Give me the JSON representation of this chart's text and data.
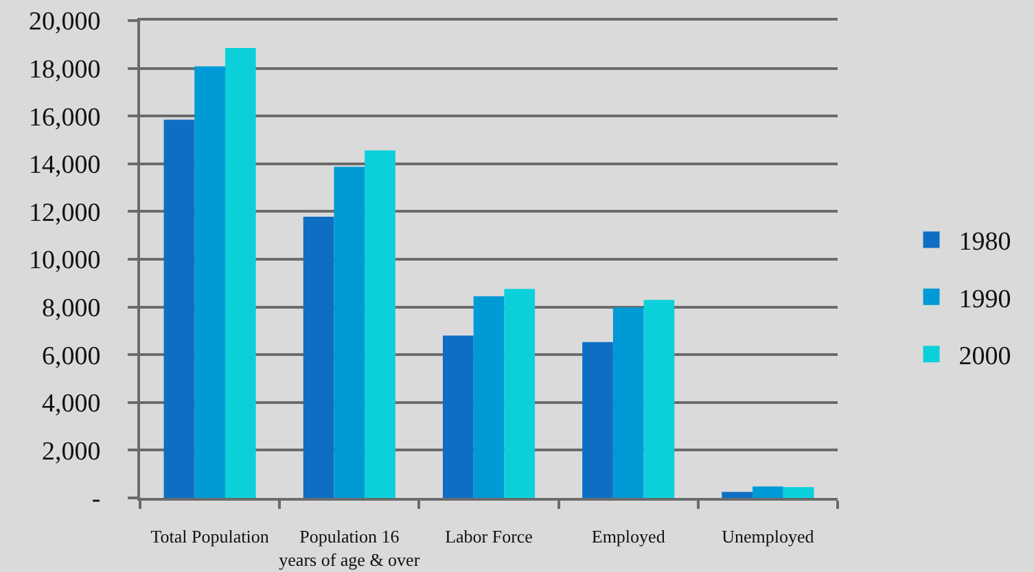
{
  "chart_data": {
    "type": "bar",
    "categories": [
      "Total Population",
      "Population 16 years of age & over",
      "Labor Force",
      "Employed",
      "Unemployed"
    ],
    "series": [
      {
        "name": "1980",
        "color": "#0e6ec4",
        "values": [
          15850,
          11780,
          6800,
          6530,
          250
        ]
      },
      {
        "name": "1990",
        "color": "#009ad6",
        "values": [
          18080,
          13870,
          8450,
          7980,
          480
        ]
      },
      {
        "name": "2000",
        "color": "#0bd0d9",
        "values": [
          18850,
          14560,
          8760,
          8300,
          450
        ]
      }
    ],
    "ylim": [
      0,
      20000
    ],
    "yticks": [
      {
        "value": 0,
        "label": "-"
      },
      {
        "value": 2000,
        "label": "2,000"
      },
      {
        "value": 4000,
        "label": "4,000"
      },
      {
        "value": 6000,
        "label": "6,000"
      },
      {
        "value": 8000,
        "label": "8,000"
      },
      {
        "value": 10000,
        "label": "10,000"
      },
      {
        "value": 12000,
        "label": "12,000"
      },
      {
        "value": 14000,
        "label": "14,000"
      },
      {
        "value": 16000,
        "label": "16,000"
      },
      {
        "value": 18000,
        "label": "18,000"
      },
      {
        "value": 20000,
        "label": "20,000"
      }
    ],
    "grid": "y",
    "legend": "right"
  }
}
